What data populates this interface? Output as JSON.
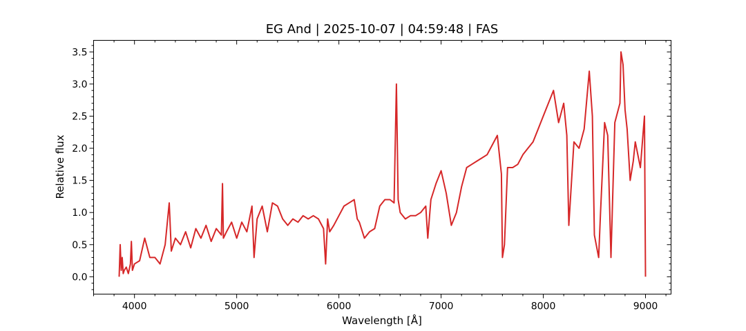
{
  "chart_data": {
    "type": "line",
    "title": "EG And | 2025-10-07 | 04:59:48 | FAS",
    "xlabel": "Wavelength [Å]",
    "ylabel": "Relative flux",
    "xlim": [
      3600,
      9250
    ],
    "ylim": [
      -0.27,
      3.68
    ],
    "x_ticks": [
      4000,
      5000,
      6000,
      7000,
      8000,
      9000
    ],
    "y_ticks": [
      0.0,
      0.5,
      1.0,
      1.5,
      2.0,
      2.5,
      3.0,
      3.5
    ],
    "x_tick_labels": [
      "4000",
      "5000",
      "6000",
      "7000",
      "8000",
      "9000"
    ],
    "y_tick_labels": [
      "0.0",
      "0.5",
      "1.0",
      "1.5",
      "2.0",
      "2.5",
      "3.0",
      "3.5"
    ],
    "grid": false,
    "series_color": "#d62728",
    "series": [
      {
        "x": [
          3850,
          3860,
          3870,
          3880,
          3890,
          3900,
          3920,
          3940,
          3960,
          3970,
          3980,
          4000,
          4050,
          4100,
          4150,
          4200,
          4250,
          4300,
          4340,
          4360,
          4400,
          4450,
          4500,
          4550,
          4600,
          4650,
          4700,
          4750,
          4800,
          4850,
          4861,
          4870,
          4900,
          4950,
          5000,
          5050,
          5100,
          5150,
          5170,
          5200,
          5250,
          5300,
          5350,
          5400,
          5450,
          5500,
          5550,
          5600,
          5650,
          5700,
          5750,
          5800,
          5850,
          5870,
          5890,
          5910,
          5950,
          6000,
          6050,
          6100,
          6150,
          6180,
          6200,
          6250,
          6300,
          6350,
          6400,
          6450,
          6500,
          6540,
          6563,
          6580,
          6600,
          6650,
          6700,
          6750,
          6800,
          6850,
          6870,
          6900,
          6950,
          7000,
          7050,
          7100,
          7150,
          7200,
          7250,
          7300,
          7350,
          7400,
          7450,
          7500,
          7550,
          7590,
          7600,
          7620,
          7650,
          7700,
          7750,
          7800,
          7850,
          7900,
          7950,
          8000,
          8050,
          8100,
          8150,
          8200,
          8230,
          8250,
          8300,
          8350,
          8400,
          8450,
          8480,
          8500,
          8542,
          8560,
          8600,
          8630,
          8662,
          8700,
          8750,
          8760,
          8780,
          8800,
          8820,
          8850,
          8880,
          8900,
          8950,
          8980,
          8990,
          9000
        ],
        "y": [
          0.0,
          0.5,
          0.1,
          0.3,
          0.05,
          0.1,
          0.15,
          0.05,
          0.2,
          0.55,
          0.1,
          0.2,
          0.25,
          0.6,
          0.3,
          0.3,
          0.2,
          0.5,
          1.15,
          0.4,
          0.6,
          0.5,
          0.7,
          0.45,
          0.75,
          0.6,
          0.8,
          0.55,
          0.75,
          0.65,
          1.45,
          0.6,
          0.7,
          0.85,
          0.6,
          0.85,
          0.7,
          1.1,
          0.3,
          0.9,
          1.1,
          0.7,
          1.15,
          1.1,
          0.9,
          0.8,
          0.9,
          0.85,
          0.95,
          0.9,
          0.95,
          0.9,
          0.75,
          0.2,
          0.9,
          0.7,
          0.8,
          0.95,
          1.1,
          1.15,
          1.2,
          0.9,
          0.85,
          0.6,
          0.7,
          0.75,
          1.1,
          1.2,
          1.2,
          1.15,
          3.0,
          1.2,
          1.0,
          0.9,
          0.95,
          0.95,
          1.0,
          1.1,
          0.6,
          1.2,
          1.45,
          1.65,
          1.3,
          0.8,
          1.0,
          1.4,
          1.7,
          1.75,
          1.8,
          1.85,
          1.9,
          2.05,
          2.2,
          1.6,
          0.3,
          0.5,
          1.7,
          1.7,
          1.75,
          1.9,
          2.0,
          2.1,
          2.3,
          2.5,
          2.7,
          2.9,
          2.4,
          2.7,
          2.2,
          0.8,
          2.1,
          2.0,
          2.3,
          3.2,
          2.5,
          0.65,
          0.3,
          1.0,
          2.4,
          2.2,
          0.3,
          2.4,
          2.7,
          3.5,
          3.3,
          2.6,
          2.3,
          1.5,
          1.8,
          2.1,
          1.7,
          2.3,
          2.5,
          0.0
        ]
      }
    ]
  }
}
